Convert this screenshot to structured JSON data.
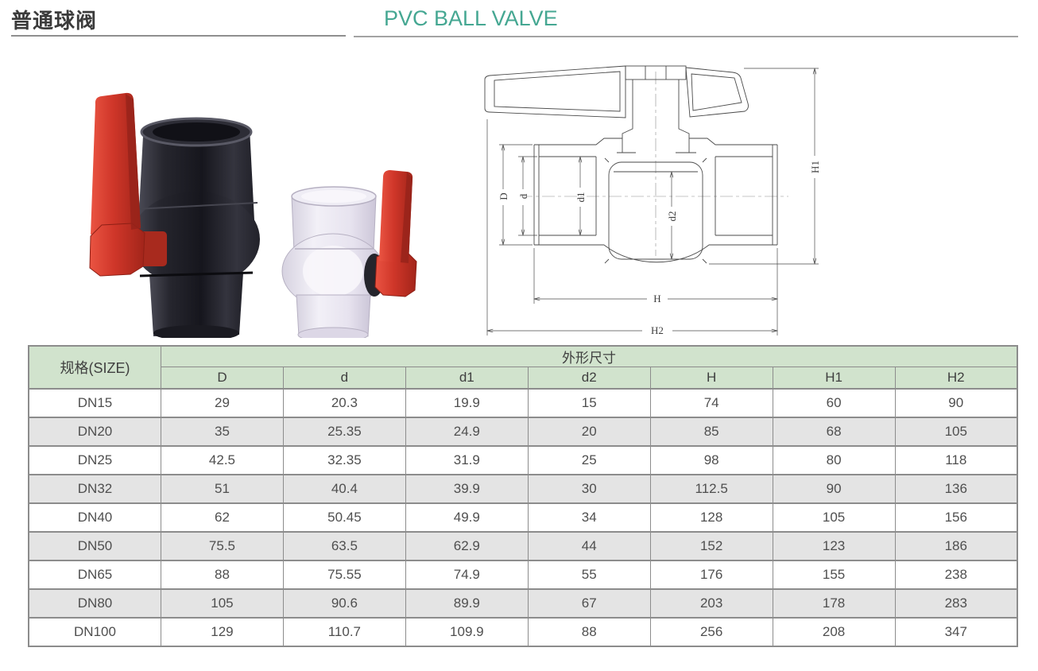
{
  "header": {
    "title_zh": "普通球阀",
    "title_en": "PVC BALL VALVE",
    "accent_color": "#45a792",
    "rule_color": "#8f8f8f"
  },
  "photos": {
    "dark_valve": "dark-pvc-ball-valve",
    "clear_valve": "transparent-pvc-ball-valve",
    "handle_color": "#cf3629",
    "dark_body_color": "#23232b",
    "clear_body_color": "#e9e6f0"
  },
  "drawing": {
    "labels": [
      "D",
      "d",
      "d1",
      "d2",
      "H",
      "H1",
      "H2"
    ],
    "line_color": "#4a4a4a"
  },
  "table": {
    "size_header": "规格(SIZE)",
    "group_header": "外形尺寸",
    "columns": [
      "D",
      "d",
      "d1",
      "d2",
      "H",
      "H1",
      "H2"
    ],
    "rows": [
      {
        "size": "DN15",
        "values": [
          "29",
          "20.3",
          "19.9",
          "15",
          "74",
          "60",
          "90"
        ]
      },
      {
        "size": "DN20",
        "values": [
          "35",
          "25.35",
          "24.9",
          "20",
          "85",
          "68",
          "105"
        ]
      },
      {
        "size": "DN25",
        "values": [
          "42.5",
          "32.35",
          "31.9",
          "25",
          "98",
          "80",
          "118"
        ]
      },
      {
        "size": "DN32",
        "values": [
          "51",
          "40.4",
          "39.9",
          "30",
          "112.5",
          "90",
          "136"
        ]
      },
      {
        "size": "DN40",
        "values": [
          "62",
          "50.45",
          "49.9",
          "34",
          "128",
          "105",
          "156"
        ]
      },
      {
        "size": "DN50",
        "values": [
          "75.5",
          "63.5",
          "62.9",
          "44",
          "152",
          "123",
          "186"
        ]
      },
      {
        "size": "DN65",
        "values": [
          "88",
          "75.55",
          "74.9",
          "55",
          "176",
          "155",
          "238"
        ]
      },
      {
        "size": "DN80",
        "values": [
          "105",
          "90.6",
          "89.9",
          "67",
          "203",
          "178",
          "283"
        ]
      },
      {
        "size": "DN100",
        "values": [
          "129",
          "110.7",
          "109.9",
          "88",
          "256",
          "208",
          "347"
        ]
      }
    ],
    "header_bg": "#d1e3cd",
    "alt_row_bg": "#e4e4e4",
    "border_color": "#8c8c8c"
  }
}
